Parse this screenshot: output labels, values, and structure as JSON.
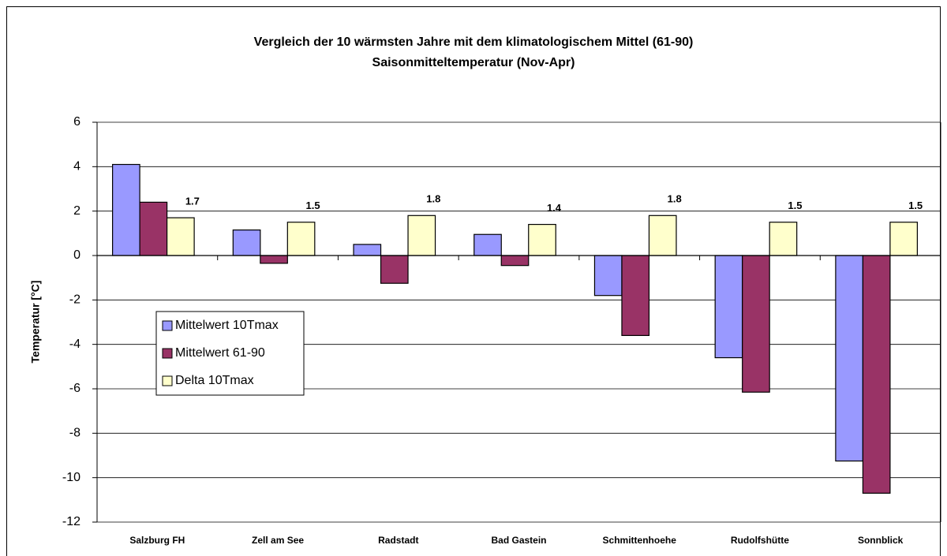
{
  "chart_data": {
    "type": "bar",
    "title": "Vergleich der 10 wärmsten Jahre mit dem klimatologischem Mittel (61-90)",
    "subtitle": "Saisonmitteltemperatur (Nov-Apr)",
    "y_label": "Temperatur [°C]",
    "categories": [
      "Salzburg FH",
      "Zell am See",
      "Radstadt",
      "Bad Gastein",
      "Schmittenhoehe",
      "Rudolfshütte",
      "Sonnblick"
    ],
    "series": [
      {
        "name": "Mittelwert 10Tmax",
        "color": "#9999ff",
        "values": [
          4.1,
          1.15,
          0.5,
          0.95,
          -1.8,
          -4.6,
          -9.25
        ]
      },
      {
        "name": "Mittelwert 61-90",
        "color": "#993366",
        "values": [
          2.4,
          -0.35,
          -1.25,
          -0.45,
          -3.6,
          -6.15,
          -10.7
        ]
      },
      {
        "name": "Delta 10Tmax",
        "color": "#ffffcc",
        "values": [
          1.7,
          1.5,
          1.8,
          1.4,
          1.8,
          1.5,
          1.5
        ],
        "show_labels": true
      }
    ],
    "ylim": [
      -12,
      6
    ],
    "yticks": [
      -12,
      -10,
      -8,
      -6,
      -4,
      -2,
      0,
      2,
      4,
      6
    ],
    "grid": true,
    "legend": "left"
  }
}
